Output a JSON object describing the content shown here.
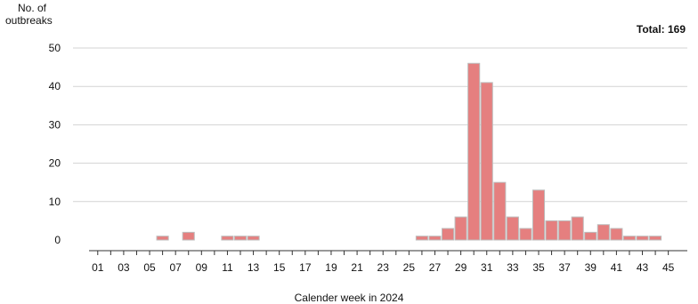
{
  "chart_data": {
    "type": "bar",
    "title": "",
    "ylabel": "No. of outbreaks",
    "xlabel": "Calender week in 2024",
    "annotation": "Total: 169",
    "ylim": [
      0,
      50
    ],
    "yticks": [
      0,
      10,
      20,
      30,
      40,
      50
    ],
    "grid": true,
    "bar_color": "#e57f7f",
    "bar_edge_color": "#bdbdbd",
    "categories": [
      "01",
      "02",
      "03",
      "04",
      "05",
      "06",
      "07",
      "08",
      "09",
      "10",
      "11",
      "12",
      "13",
      "14",
      "15",
      "16",
      "17",
      "18",
      "19",
      "20",
      "21",
      "22",
      "23",
      "24",
      "25",
      "26",
      "27",
      "28",
      "29",
      "30",
      "31",
      "32",
      "33",
      "34",
      "35",
      "36",
      "37",
      "38",
      "39",
      "40",
      "41",
      "42",
      "43",
      "44",
      "45"
    ],
    "tick_labels": [
      "01",
      "03",
      "05",
      "07",
      "09",
      "11",
      "13",
      "15",
      "17",
      "19",
      "21",
      "23",
      "25",
      "27",
      "29",
      "31",
      "33",
      "35",
      "37",
      "39",
      "41",
      "43",
      "45"
    ],
    "values": [
      0,
      0,
      0,
      0,
      0,
      1,
      0,
      2,
      0,
      0,
      1,
      1,
      1,
      0,
      0,
      0,
      0,
      0,
      0,
      0,
      0,
      0,
      0,
      0,
      0,
      1,
      1,
      3,
      6,
      46,
      41,
      15,
      6,
      3,
      13,
      5,
      5,
      6,
      2,
      4,
      3,
      1,
      1,
      1,
      0
    ]
  }
}
